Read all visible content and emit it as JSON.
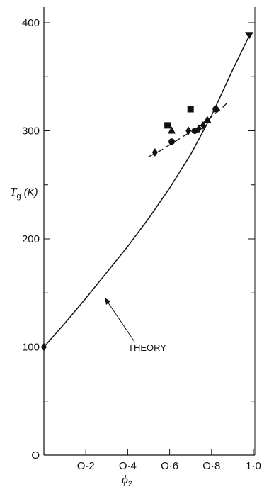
{
  "chart_data": {
    "type": "scatter",
    "title": "",
    "xlabel": "ϕ",
    "xlabel_subscript": "2",
    "ylabel": "T",
    "ylabel_subscript": "g",
    "ylabel_unit": "(K)",
    "xlim": [
      0,
      1.0
    ],
    "ylim": [
      0,
      400
    ],
    "x_ticks": [
      0.2,
      0.4,
      0.6,
      0.8,
      1.0
    ],
    "x_tick_labels": [
      "O·2",
      "O·4",
      "O·6",
      "O·8",
      "1·0"
    ],
    "y_ticks": [
      0,
      100,
      200,
      300,
      400
    ],
    "y_tick_labels": [
      "O",
      "100",
      "200",
      "300",
      "400"
    ],
    "grid": false,
    "annotation": "THEORY",
    "annotation_target": {
      "x": 0.28,
      "y": 145
    },
    "series": [
      {
        "marker": "diamond",
        "role": "data",
        "x": [
          0,
          0.53,
          0.69,
          0.74,
          0.76
        ],
        "y": [
          100,
          280,
          300,
          302,
          305
        ]
      },
      {
        "marker": "circle",
        "role": "data",
        "x": [
          0.61,
          0.72,
          0.82
        ],
        "y": [
          290,
          300,
          320
        ]
      },
      {
        "marker": "square",
        "role": "data",
        "x": [
          0.59,
          0.7
        ],
        "y": [
          305,
          320
        ]
      },
      {
        "marker": "triangle",
        "role": "data",
        "x": [
          0.61,
          0.78
        ],
        "y": [
          300,
          310
        ]
      },
      {
        "marker": "triangle-down",
        "role": "data",
        "x": [
          0.98
        ],
        "y": [
          388
        ]
      },
      {
        "type": "line",
        "style": "solid",
        "role": "theory",
        "x": [
          0,
          0.1,
          0.2,
          0.3,
          0.4,
          0.5,
          0.6,
          0.7,
          0.8,
          0.9,
          0.98
        ],
        "y": [
          100,
          122,
          145,
          169,
          193,
          219,
          247,
          278,
          314,
          356,
          388
        ]
      },
      {
        "type": "line",
        "style": "dashed",
        "role": "fit",
        "x": [
          0.5,
          0.55,
          0.6,
          0.65,
          0.7,
          0.75,
          0.8,
          0.85,
          0.88
        ],
        "y": [
          276,
          281,
          287,
          293,
          299,
          305,
          313,
          321,
          327
        ]
      }
    ]
  }
}
